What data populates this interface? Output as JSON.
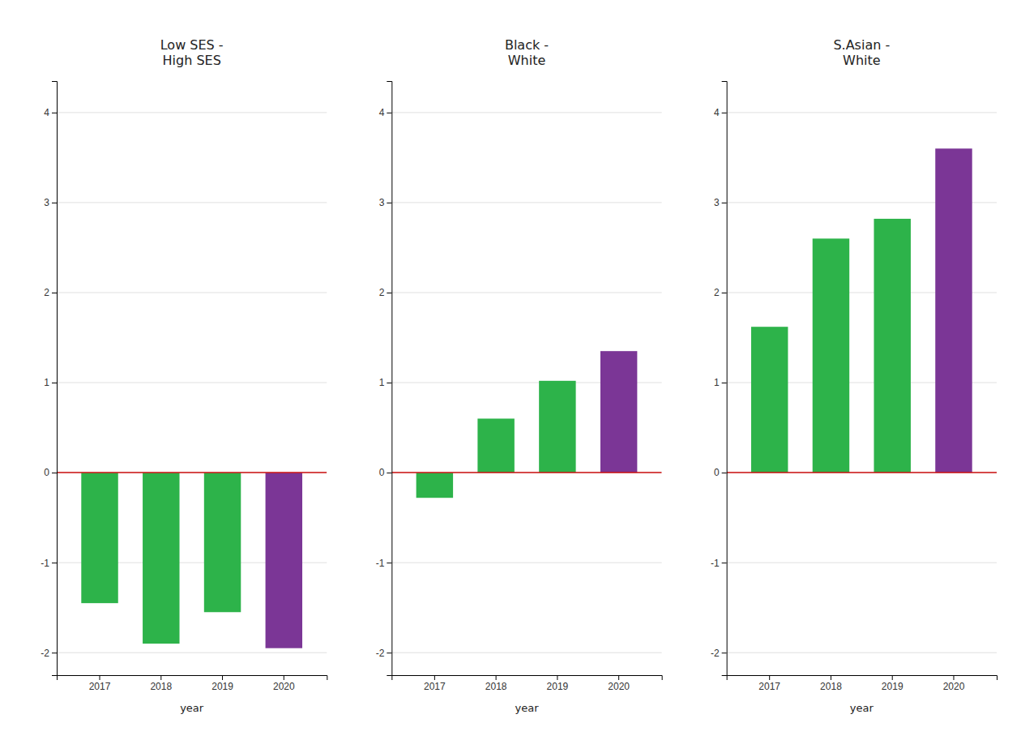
{
  "chart_data": [
    {
      "type": "bar",
      "title": "Low SES -\nHigh SES",
      "xlabel": "year",
      "categories": [
        "2017",
        "2018",
        "2019",
        "2020"
      ],
      "values": [
        -1.45,
        -1.9,
        -1.55,
        -1.95
      ],
      "colors": [
        "#2db34a",
        "#2db34a",
        "#2db34a",
        "#7b3696"
      ],
      "ylim": [
        -2.25,
        4.35
      ],
      "yticks": [
        -2,
        -1,
        0,
        1,
        2,
        3,
        4
      ],
      "grid": true
    },
    {
      "type": "bar",
      "title": "Black -\nWhite",
      "xlabel": "year",
      "categories": [
        "2017",
        "2018",
        "2019",
        "2020"
      ],
      "values": [
        -0.28,
        0.6,
        1.02,
        1.35
      ],
      "colors": [
        "#2db34a",
        "#2db34a",
        "#2db34a",
        "#7b3696"
      ],
      "ylim": [
        -2.25,
        4.35
      ],
      "yticks": [
        -2,
        -1,
        0,
        1,
        2,
        3,
        4
      ],
      "grid": true
    },
    {
      "type": "bar",
      "title": "S.Asian -\nWhite",
      "xlabel": "year",
      "categories": [
        "2017",
        "2018",
        "2019",
        "2020"
      ],
      "values": [
        1.62,
        2.6,
        2.82,
        3.6
      ],
      "colors": [
        "#2db34a",
        "#2db34a",
        "#2db34a",
        "#7b3696"
      ],
      "ylim": [
        -2.25,
        4.35
      ],
      "yticks": [
        -2,
        -1,
        0,
        1,
        2,
        3,
        4
      ],
      "grid": true
    }
  ]
}
